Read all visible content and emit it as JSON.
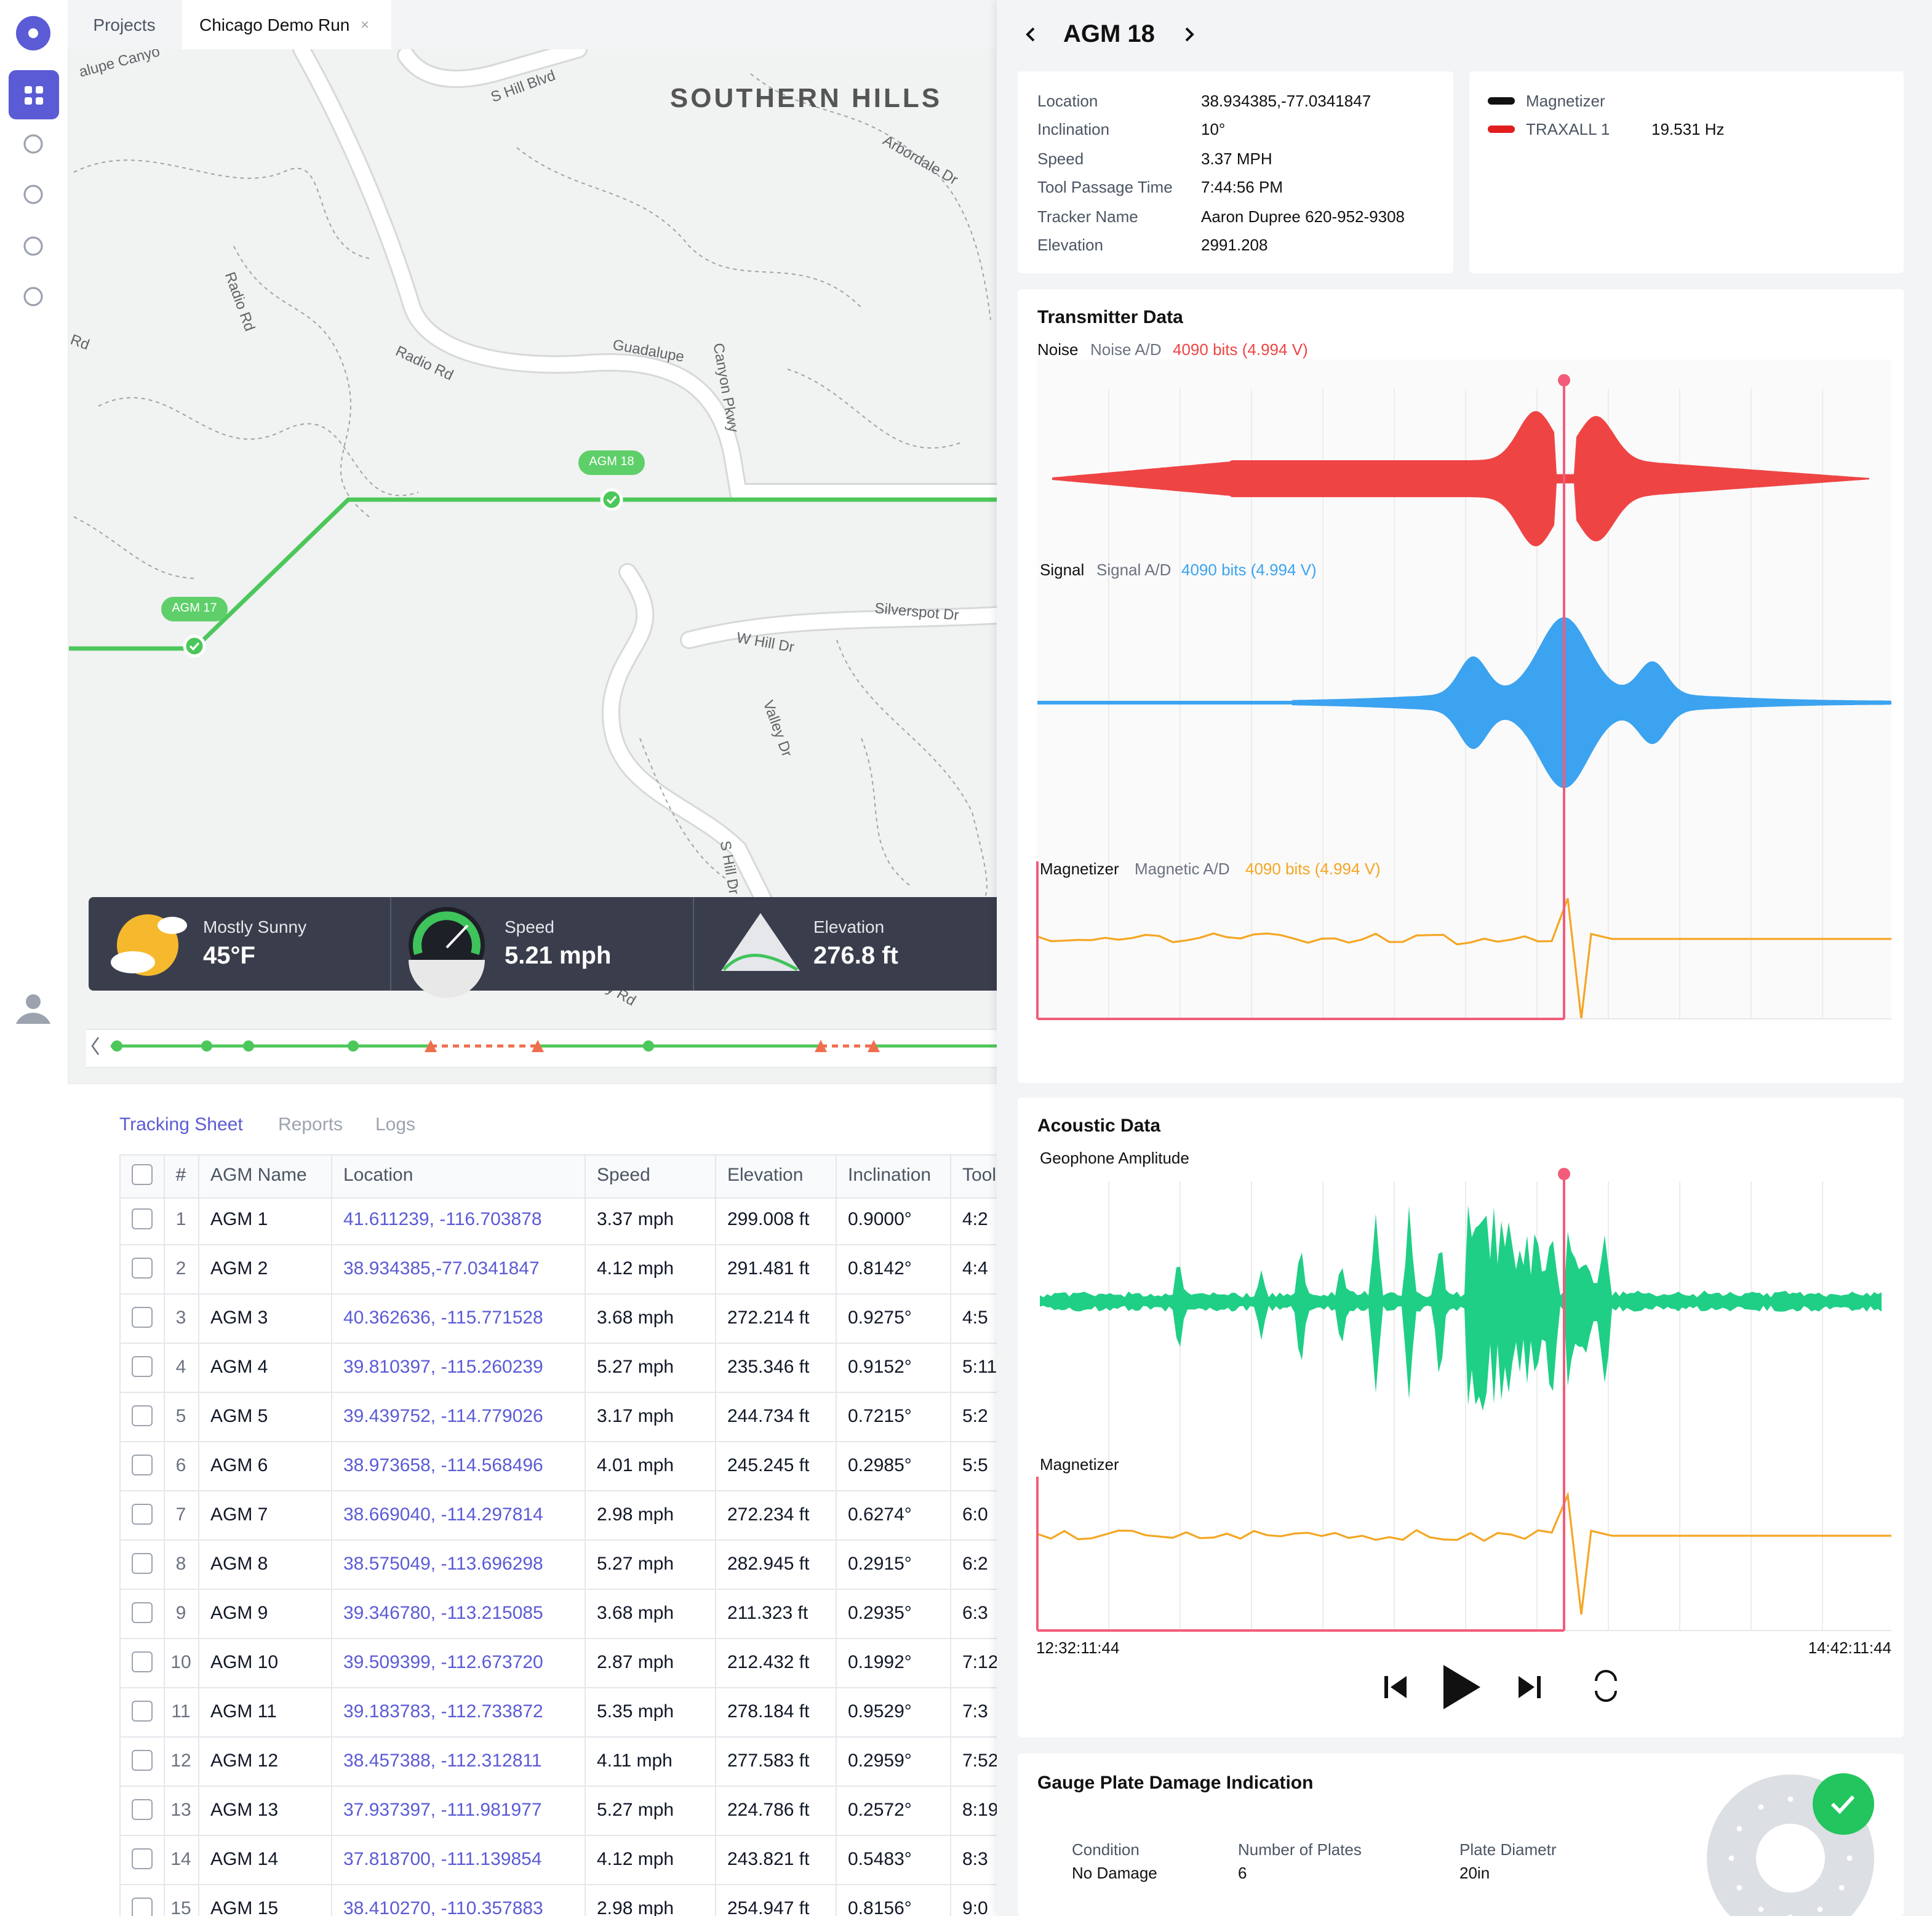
{
  "tabs": [
    "Projects",
    "Chicago Demo Run"
  ],
  "map": {
    "labels": [
      "SOUTHERN HILLS",
      "S Hill Blvd",
      "Guadalupe",
      "Canyon Pkwy",
      "Radio Rd",
      "Radio Rd",
      "Silverspot Dr",
      "W Hill Dr",
      "Valley Dr",
      "S Hill Dr",
      "Arbordale Dr",
      "alupe Canyo",
      "Rd",
      "y Rd"
    ],
    "markers": [
      "AGM 18",
      "AGM 17"
    ]
  },
  "stats": [
    {
      "label": "Mostly Sunny",
      "value": "45°F"
    },
    {
      "label": "Speed",
      "value": "5.21 mph"
    },
    {
      "label": "Elevation",
      "value": "276.8 ft"
    }
  ],
  "sheet_tabs": [
    "Tracking Sheet",
    "Reports",
    "Logs"
  ],
  "table": {
    "columns": [
      "#",
      "AGM Name",
      "Location",
      "Speed",
      "Elevation",
      "Inclination",
      "Tool"
    ],
    "rows": [
      [
        1,
        "AGM 1",
        "41.611239, -116.703878",
        "3.37 mph",
        "299.008 ft",
        "0.9000°",
        "4:2"
      ],
      [
        2,
        "AGM 2",
        "38.934385,-77.0341847",
        "4.12 mph",
        "291.481 ft",
        "0.8142°",
        "4:4"
      ],
      [
        3,
        "AGM 3",
        "40.362636, -115.771528",
        "3.68 mph",
        "272.214 ft",
        "0.9275°",
        "4:5"
      ],
      [
        4,
        "AGM 4",
        "39.810397, -115.260239",
        "5.27 mph",
        "235.346 ft",
        "0.9152°",
        "5:11"
      ],
      [
        5,
        "AGM 5",
        "39.439752, -114.779026",
        "3.17 mph",
        "244.734 ft",
        "0.7215°",
        "5:2"
      ],
      [
        6,
        "AGM 6",
        "38.973658, -114.568496",
        "4.01 mph",
        "245.245 ft",
        "0.2985°",
        "5:5"
      ],
      [
        7,
        "AGM 7",
        "38.669040, -114.297814",
        "2.98 mph",
        "272.234 ft",
        "0.6274°",
        "6:0"
      ],
      [
        8,
        "AGM 8",
        "38.575049, -113.696298",
        "5.27 mph",
        "282.945 ft",
        "0.2915°",
        "6:2"
      ],
      [
        9,
        "AGM 9",
        "39.346780, -113.215085",
        "3.68 mph",
        "211.323 ft",
        "0.2935°",
        "6:3"
      ],
      [
        10,
        "AGM 10",
        "39.509399, -112.673720",
        "2.87 mph",
        "212.432 ft",
        "0.1992°",
        "7:12"
      ],
      [
        11,
        "AGM 11",
        "39.183783, -112.733872",
        "5.35 mph",
        "278.184 ft",
        "0.9529°",
        "7:3"
      ],
      [
        12,
        "AGM 12",
        "38.457388, -112.312811",
        "4.11 mph",
        "277.583 ft",
        "0.2959°",
        "7:52"
      ],
      [
        13,
        "AGM 13",
        "37.937397, -111.981977",
        "5.27 mph",
        "224.786 ft",
        "0.2572°",
        "8:19"
      ],
      [
        14,
        "AGM 14",
        "37.818700, -111.139854",
        "4.12 mph",
        "243.821 ft",
        "0.5483°",
        "8:3"
      ],
      [
        15,
        "AGM 15",
        "38.410270, -110.357883",
        "2.98 mph",
        "254.947 ft",
        "0.8156°",
        "9:0"
      ]
    ]
  },
  "detail": {
    "title": "AGM 18",
    "info": [
      [
        "Location",
        "38.934385,-77.0341847"
      ],
      [
        "Inclination",
        "10°"
      ],
      [
        "Speed",
        "3.37 MPH"
      ],
      [
        "Tool Passage Time",
        "7:44:56 PM"
      ],
      [
        "Tracker Name",
        "Aaron Dupree 620-952-9308"
      ],
      [
        "Elevation",
        "2991.208"
      ]
    ],
    "legend": [
      {
        "name": "Magnetizer",
        "color": "#111111"
      },
      {
        "name": "TRAXALL 1",
        "color": "#e11d1d",
        "value": "19.531 Hz"
      }
    ],
    "transmitter": {
      "title": "Transmitter Data",
      "channels": [
        {
          "name": "Noise",
          "label": "Noise A/D",
          "reading": "4090 bits (4.994 V)",
          "color": "#ef4444"
        },
        {
          "name": "Signal",
          "label": "Signal A/D",
          "reading": "4090 bits (4.994 V)",
          "color": "#3ba3f0"
        },
        {
          "name": "Magnetizer",
          "label": "Magnetic A/D",
          "reading": "4090 bits (4.994 V)",
          "color": "#f5a623"
        }
      ]
    },
    "acoustic": {
      "title": "Acoustic Data",
      "channels": [
        {
          "name": "Geophone Amplitude",
          "color": "#1fcf86"
        },
        {
          "name": "Magnetizer",
          "color": "#f5a623"
        }
      ],
      "start": "12:32:11:44",
      "end": "14:42:11:44"
    },
    "gauge": {
      "title": "Gauge Plate Damage Indication",
      "fields": [
        {
          "label": "Condition",
          "value": "No Damage"
        },
        {
          "label": "Number of Plates",
          "value": "6"
        },
        {
          "label": "Plate Diametr",
          "value": "20in"
        }
      ]
    }
  }
}
